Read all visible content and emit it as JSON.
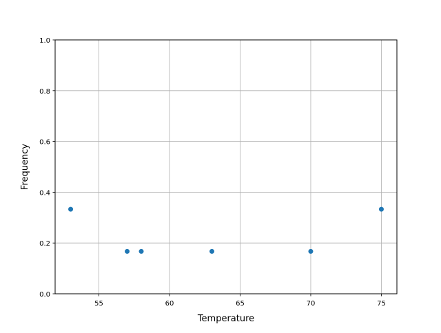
{
  "chart_data": {
    "type": "scatter",
    "title": "",
    "xlabel": "Temperature",
    "ylabel": "Frequency",
    "xlim": [
      51.9,
      76.1
    ],
    "ylim": [
      0.0,
      1.0
    ],
    "grid": true,
    "xticks": [
      55,
      60,
      65,
      70,
      75
    ],
    "xtick_labels": [
      "55",
      "60",
      "65",
      "70",
      "75"
    ],
    "yticks": [
      0.0,
      0.2,
      0.4,
      0.6,
      0.8,
      1.0
    ],
    "ytick_labels": [
      "0.0",
      "0.2",
      "0.4",
      "0.6",
      "0.8",
      "1.0"
    ],
    "color": "#1f77b4",
    "points": [
      {
        "x": 53,
        "y": 0.333
      },
      {
        "x": 57,
        "y": 0.167
      },
      {
        "x": 58,
        "y": 0.167
      },
      {
        "x": 63,
        "y": 0.167
      },
      {
        "x": 70,
        "y": 0.167
      },
      {
        "x": 75,
        "y": 0.333
      }
    ]
  }
}
